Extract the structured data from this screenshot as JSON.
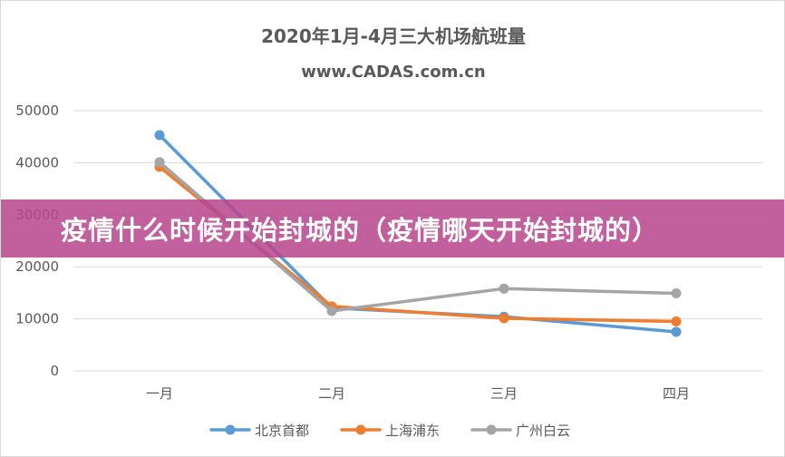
{
  "banner": {
    "text": "疫情什么时候开始封城的（疫情哪天开始封城的）",
    "color": "#b7468c"
  },
  "chart_data": {
    "type": "line",
    "title": "2020年1月-4月三大机场航班量",
    "subtitle": "www.CADAS.com.cn",
    "categories": [
      "一月",
      "二月",
      "三月",
      "四月"
    ],
    "ylim": [
      0,
      50000
    ],
    "yticks": [
      0,
      10000,
      20000,
      30000,
      40000,
      50000
    ],
    "grid": true,
    "legend_position": "bottom",
    "series": [
      {
        "name": "北京首都",
        "color": "#5b9bd5",
        "values": [
          45300,
          12100,
          10400,
          7500
        ]
      },
      {
        "name": "上海浦东",
        "color": "#ed7d31",
        "values": [
          39200,
          12400,
          10100,
          9500
        ]
      },
      {
        "name": "广州白云",
        "color": "#a5a5a5",
        "values": [
          40100,
          11500,
          15800,
          14900
        ]
      }
    ]
  }
}
